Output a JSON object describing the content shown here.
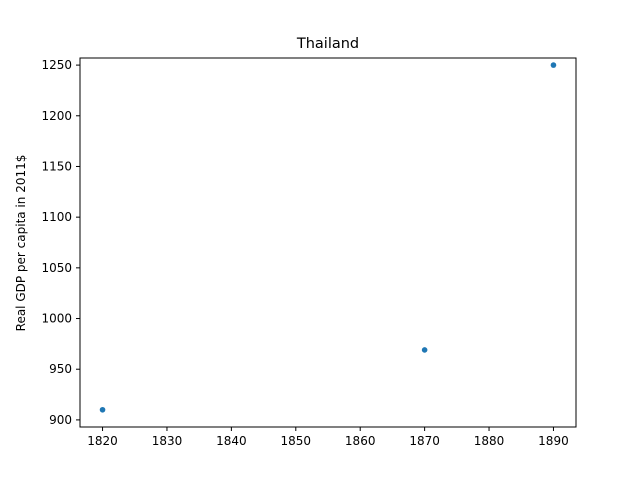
{
  "chart_data": {
    "type": "scatter",
    "title": "Thailand",
    "xlabel": "",
    "ylabel": "Real GDP per capita in 2011$",
    "xlim": [
      1816.5,
      1893.5
    ],
    "ylim": [
      893,
      1257
    ],
    "xticks": [
      1820,
      1830,
      1840,
      1850,
      1860,
      1870,
      1880,
      1890
    ],
    "yticks": [
      900,
      950,
      1000,
      1050,
      1100,
      1150,
      1200,
      1250
    ],
    "grid": false,
    "series": [
      {
        "x": [
          1820,
          1870,
          1890
        ],
        "y": [
          910,
          969,
          1250
        ],
        "color": "#1f77b4"
      }
    ]
  }
}
